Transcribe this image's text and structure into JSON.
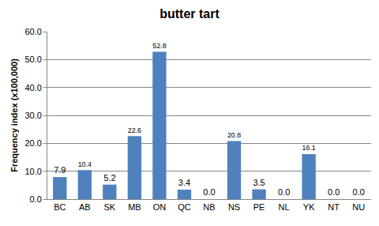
{
  "chart_data": {
    "type": "bar",
    "title": "butter tart",
    "y_label": "Frequency index (x100,000)",
    "categories": [
      "BC",
      "AB",
      "SK",
      "MB",
      "ON",
      "QC",
      "NB",
      "NS",
      "PE",
      "NL",
      "YK",
      "NT",
      "NU"
    ],
    "values": [
      7.9,
      10.4,
      5.2,
      22.6,
      52.8,
      3.4,
      0.0,
      20.8,
      3.5,
      0.0,
      16.1,
      0.0,
      0.0
    ],
    "value_labels": [
      "7.9",
      "10.4",
      "5.2",
      "22.6",
      "52.8",
      "3.4",
      "0.0",
      "20.8",
      "3.5",
      "0.0",
      "16.1",
      "0.0",
      "0.0"
    ],
    "color": "#4f81bd",
    "ylim": [
      0,
      60
    ],
    "yticks": [
      {
        "value": 0,
        "label": "0.0"
      },
      {
        "value": 10,
        "label": "10.0"
      },
      {
        "value": 20,
        "label": "20.0"
      },
      {
        "value": 30,
        "label": "30.0"
      },
      {
        "value": 40,
        "label": "40.0"
      },
      {
        "value": 50,
        "label": "50.0"
      },
      {
        "value": 60,
        "label": "60.0"
      }
    ],
    "grid": true,
    "data_labels": true
  }
}
